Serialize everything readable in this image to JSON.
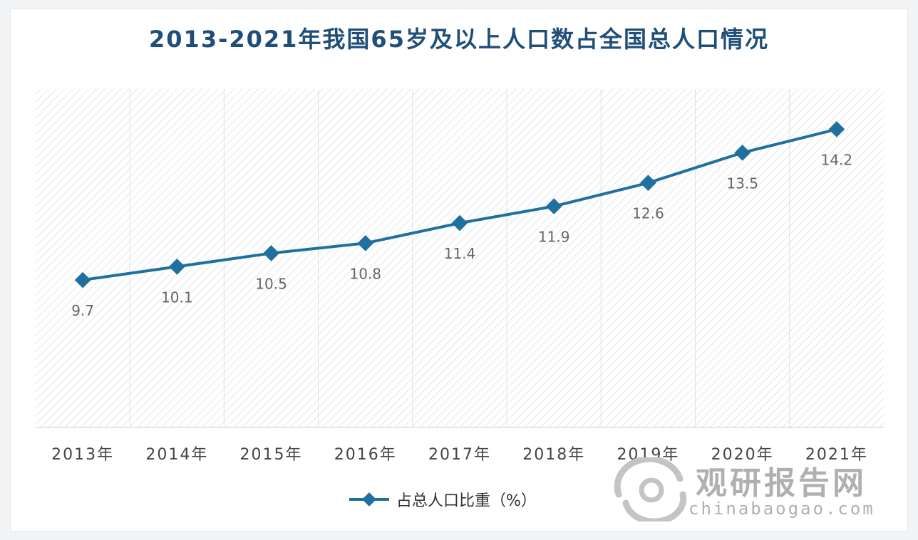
{
  "title": "2013-2021年我国65岁及以上人口数占全国总人口情况",
  "legend": {
    "label": "占总人口比重（%）"
  },
  "watermark": {
    "cn": "观研报告网",
    "en": "chinabaogao.com",
    "icon": "watermark-logo-icon"
  },
  "colors": {
    "line": "#1f6f9f",
    "title": "#1f4e79",
    "hatch": "#dcdfe3"
  },
  "chart_data": {
    "type": "line",
    "title": "2013-2021年我国65岁及以上人口数占全国总人口情况",
    "categories": [
      "2013年",
      "2014年",
      "2015年",
      "2016年",
      "2017年",
      "2018年",
      "2019年",
      "2020年",
      "2021年"
    ],
    "series": [
      {
        "name": "占总人口比重（%）",
        "values": [
          9.7,
          10.1,
          10.5,
          10.8,
          11.4,
          11.9,
          12.6,
          13.5,
          14.2
        ]
      }
    ],
    "ylim": [
      5.3,
      15.4
    ],
    "grid": true,
    "legend_position": "bottom",
    "data_labels": true
  }
}
